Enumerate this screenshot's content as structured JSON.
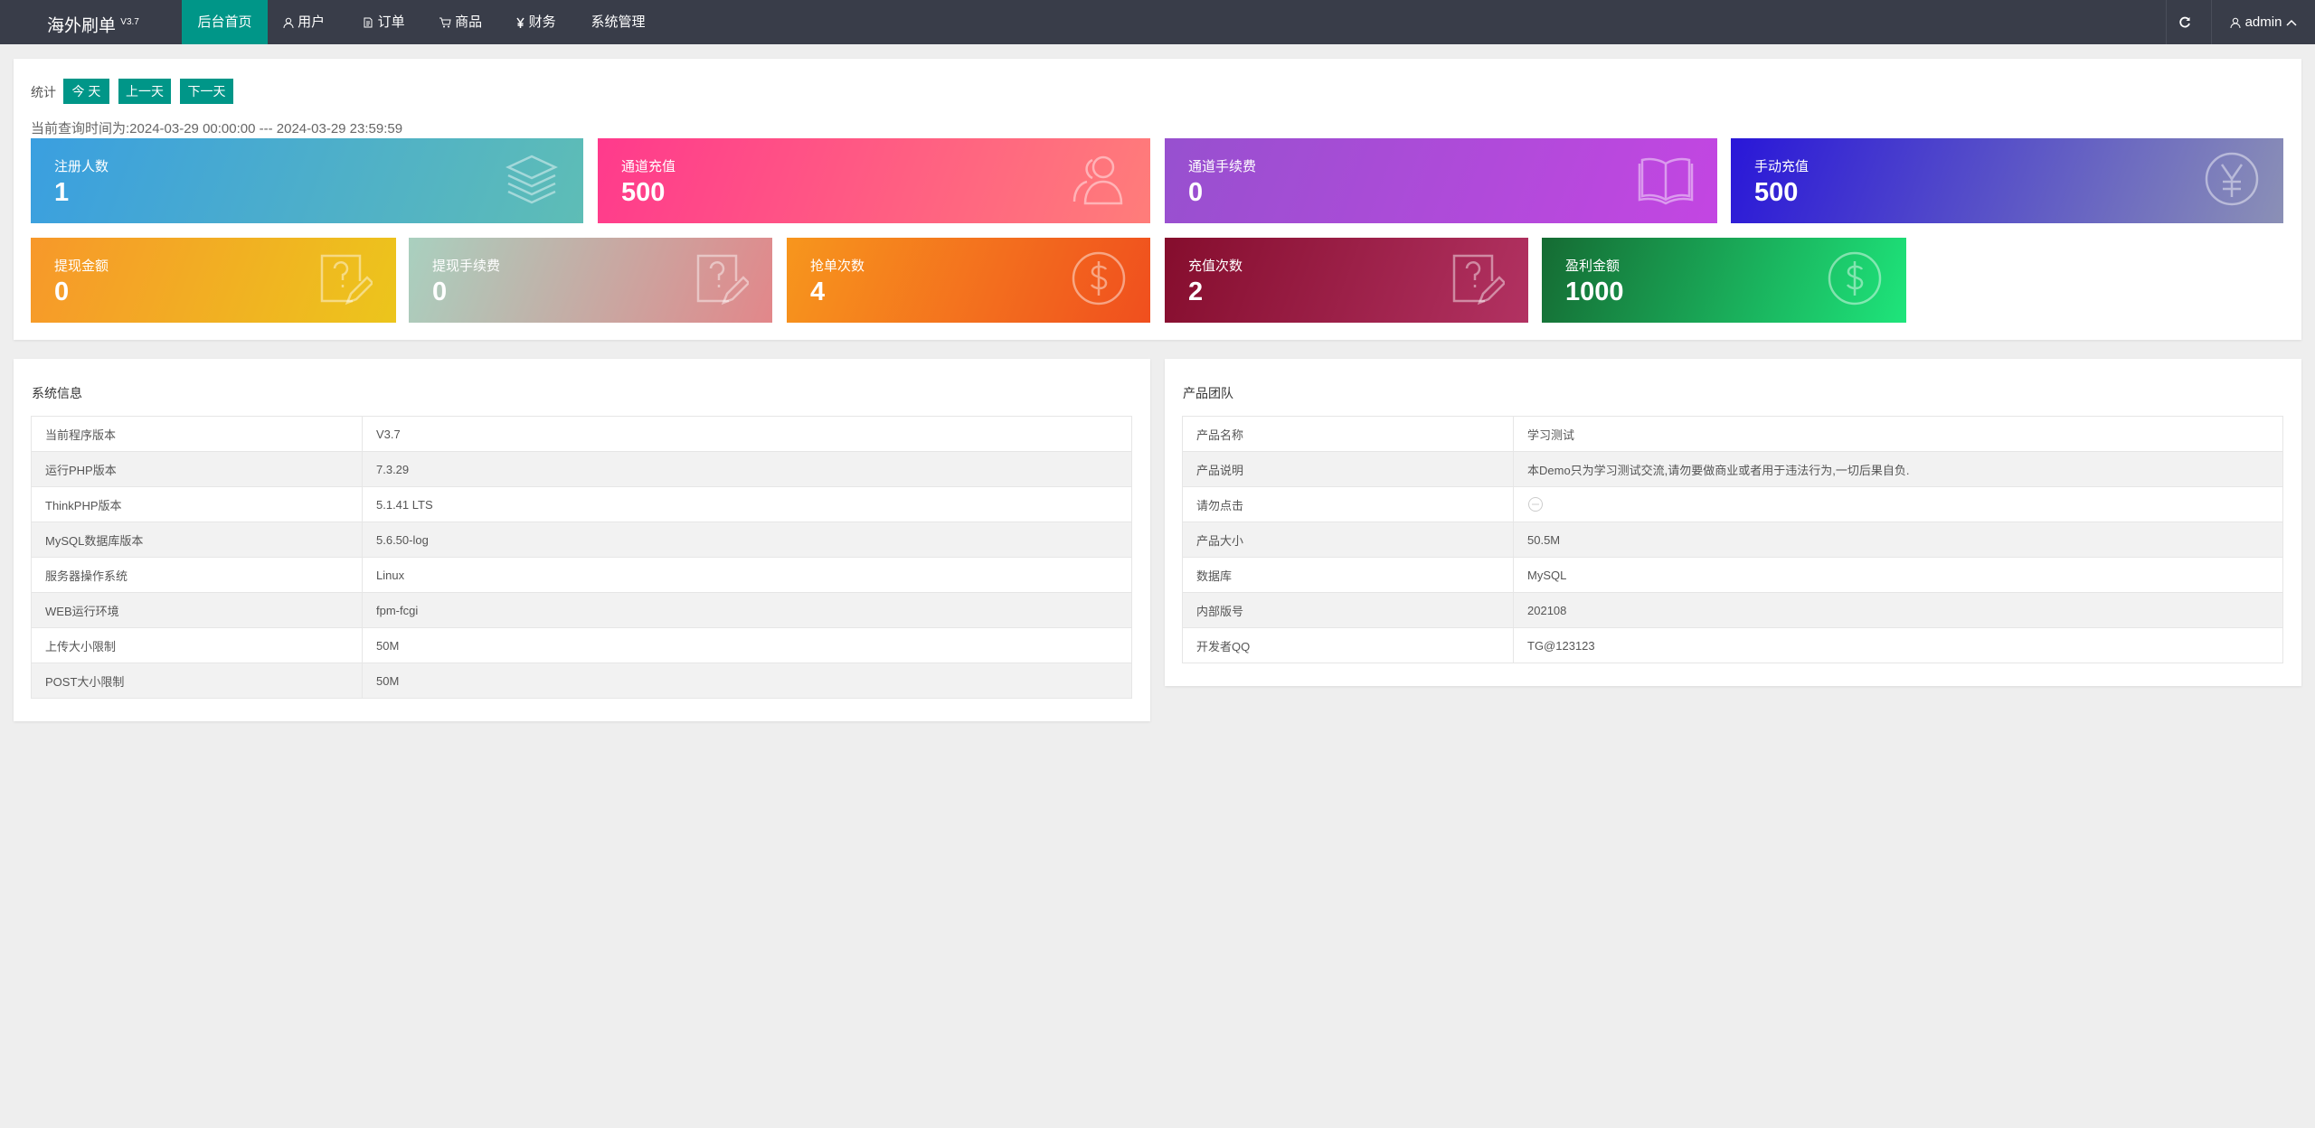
{
  "header": {
    "logo": "海外刷单",
    "version": "V3.7",
    "menu": [
      "后台首页",
      "用户",
      "订单",
      "商品",
      "财务",
      "系统管理"
    ],
    "user": "admin"
  },
  "stats": {
    "label": "统计",
    "buttons": [
      "今 天",
      "上一天",
      "下一天"
    ],
    "query_range": "当前查询时间为:2024-03-29 00:00:00 --- 2024-03-29 23:59:59",
    "cards": [
      {
        "label": "注册人数",
        "value": 1
      },
      {
        "label": "通道充值",
        "value": 500
      },
      {
        "label": "通道手续费",
        "value": 0
      },
      {
        "label": "手动充值",
        "value": 500
      },
      {
        "label": "提现金额",
        "value": 0
      },
      {
        "label": "提现手续费",
        "value": 0
      },
      {
        "label": "抢单次数",
        "value": 4
      },
      {
        "label": "充值次数",
        "value": 2
      },
      {
        "label": "盈利金额",
        "value": 1000
      }
    ]
  },
  "system_info": {
    "title": "系统信息",
    "rows": [
      [
        "当前程序版本",
        "V3.7"
      ],
      [
        "运行PHP版本",
        "7.3.29"
      ],
      [
        "ThinkPHP版本",
        "5.1.41 LTS"
      ],
      [
        "MySQL数据库版本",
        "5.6.50-log"
      ],
      [
        "服务器操作系统",
        "Linux"
      ],
      [
        "WEB运行环境",
        "fpm-fcgi"
      ],
      [
        "上传大小限制",
        "50M"
      ],
      [
        "POST大小限制",
        "50M"
      ]
    ]
  },
  "product_team": {
    "title": "产品团队",
    "rows": [
      [
        "产品名称",
        "学习测试"
      ],
      [
        "产品说明",
        "本Demo只为学习测试交流,请勿要做商业或者用于违法行为,一切后果自负."
      ],
      [
        "请勿点击"
      ],
      [
        "产品大小",
        "50.5M"
      ],
      [
        "数据库",
        "MySQL"
      ],
      [
        "内部版号",
        "202108"
      ],
      [
        "开发者QQ",
        "TG@123123"
      ]
    ]
  }
}
